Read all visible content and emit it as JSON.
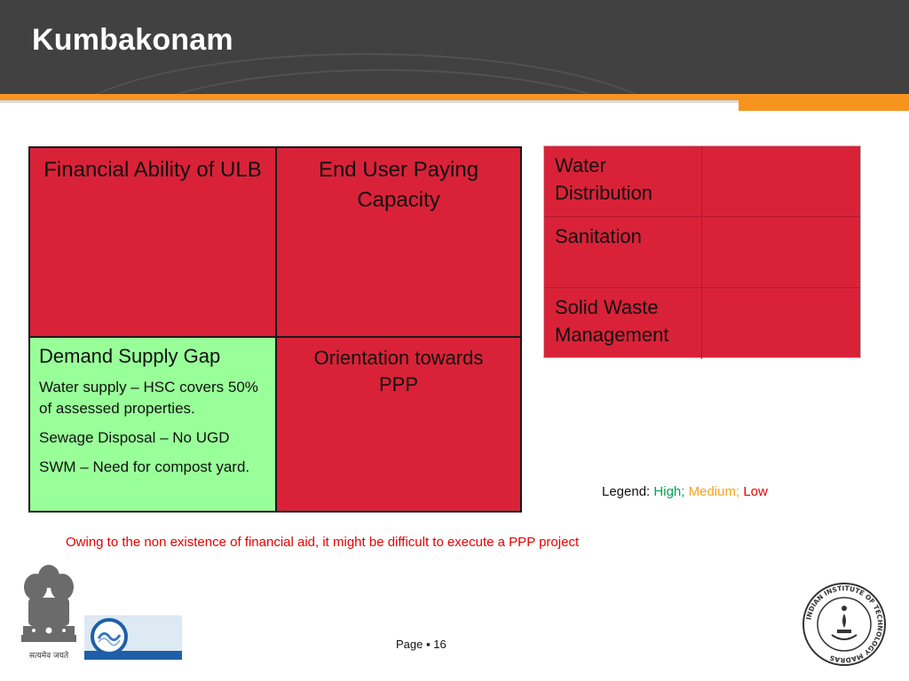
{
  "header": {
    "title": "Kumbakonam"
  },
  "matrix": {
    "top_left": "Financial Ability of ULB",
    "top_right": "End User Paying Capacity",
    "bottom_left": {
      "heading": "Demand Supply Gap",
      "lines": [
        "Water supply – HSC covers 50% of assessed properties.",
        "Sewage Disposal – No UGD",
        "SWM – Need for compost yard."
      ]
    },
    "bottom_right": "Orientation towards PPP",
    "colors": {
      "high": "#99ff99",
      "low": "#d92238"
    }
  },
  "services": [
    {
      "label": "Water Distribution",
      "color": "#d92238"
    },
    {
      "label": "Sanitation",
      "color": "#d92238"
    },
    {
      "label": "Solid Waste Management",
      "color": "#d92238"
    }
  ],
  "legend": {
    "prefix": "Legend:",
    "high": "High;",
    "medium": "Medium;",
    "low": "Low",
    "colors": {
      "high": "#00a651",
      "medium": "#f7a21b",
      "low": "#e60000"
    }
  },
  "note": "Owing to the non existence of financial aid, it  might be difficult to execute a PPP project",
  "footer": {
    "page_label": "Page",
    "page_bullet": "▪",
    "page_number": "16"
  },
  "logos": {
    "emblem": {
      "icon": "national-emblem-icon",
      "caption": "सत्यमेव जयते"
    },
    "middle": {
      "icon": "water-logo-icon"
    },
    "right": {
      "icon": "iit-madras-seal-icon",
      "text": "INDIAN INSTITUTE OF TECHNOLOGY MADRAS"
    }
  }
}
